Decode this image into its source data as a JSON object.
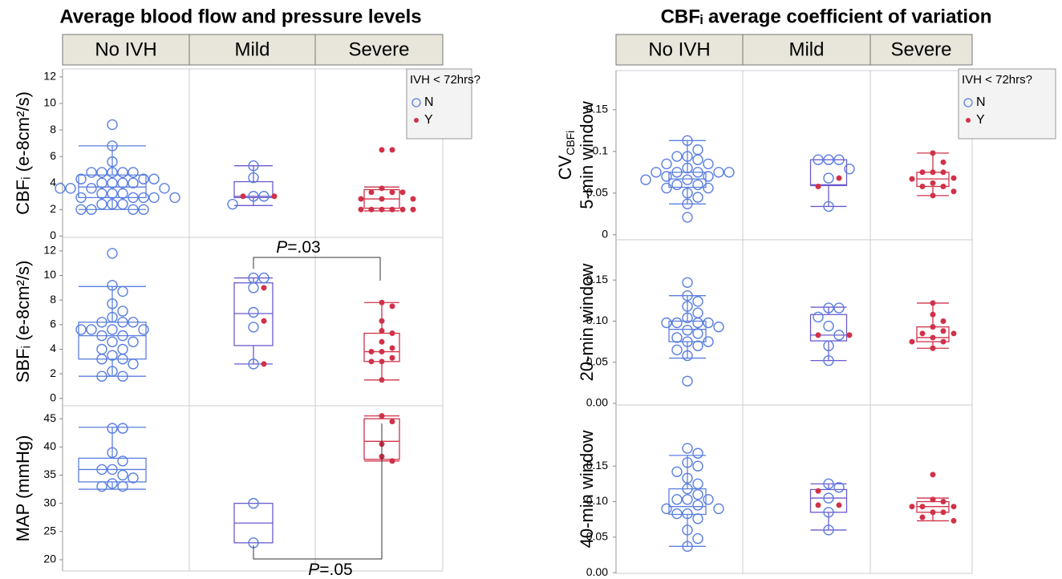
{
  "chart_data": [
    {
      "type": "box",
      "title": "Average blood flow and pressure levels",
      "categories": [
        "No IVH",
        "Mild",
        "Severe"
      ],
      "box_colors": [
        "#5a7fe0",
        "#6a5acd",
        "#d0324a"
      ],
      "legend": {
        "title": "IVH < 72hrs?",
        "position": "top-right",
        "series": [
          {
            "name": "N",
            "color": "#5a7fe0",
            "marker": "open-circle"
          },
          {
            "name": "Y",
            "color": "#d0324a",
            "marker": "dot"
          }
        ]
      },
      "panels": [
        {
          "ylabel": "CBFᵢ (e-8cm²/s)",
          "ylim": [
            -0.1,
            12.6
          ],
          "yticks": [
            0,
            2,
            4,
            6,
            8,
            10,
            12
          ],
          "groups": [
            {
              "min": 2.0,
              "q1": 2.9,
              "median": 3.7,
              "q3": 4.6,
              "max": 6.8,
              "N": [
                8.4,
                6.8,
                5.6,
                4.8,
                4.8,
                4.8,
                4.8,
                4.8,
                4.3,
                4.3,
                4.3,
                4.0,
                4.0,
                4.0,
                4.0,
                3.6,
                3.6,
                3.6,
                3.6,
                3.2,
                3.2,
                3.2,
                2.9,
                2.9,
                2.9,
                2.9,
                2.9,
                2.4,
                2.4,
                2.4,
                2.0,
                2.0,
                2.0,
                2.0
              ],
              "Y": []
            },
            {
              "min": 2.3,
              "q1": 2.9,
              "median": 3.0,
              "q3": 4.1,
              "max": 5.3,
              "N": [
                5.3,
                4.4,
                3.0,
                3.0,
                2.4
              ],
              "Y": [
                3.0,
                3.0
              ]
            },
            {
              "min": 1.9,
              "q1": 2.1,
              "median": 2.8,
              "q3": 3.5,
              "max": 3.7,
              "N": [],
              "Y": [
                6.5,
                6.5,
                3.6,
                3.3,
                3.3,
                3.3,
                2.8,
                2.8,
                2.8,
                2.0,
                2.0,
                2.0,
                2.0,
                2.0,
                2.0
              ]
            }
          ]
        },
        {
          "ylabel": "SBFᵢ (e-8cm²/s)",
          "ylim": [
            -0.6,
            13.1
          ],
          "yticks": [
            0,
            2,
            4,
            6,
            8,
            10,
            12
          ],
          "annotation": {
            "italic": "P",
            "text": "=.03"
          },
          "groups": [
            {
              "min": 1.8,
              "q1": 3.2,
              "median": 5.1,
              "q3": 6.2,
              "max": 9.1,
              "N": [
                11.8,
                9.2,
                8.7,
                7.7,
                7.1,
                6.6,
                6.2,
                6.2,
                6.2,
                5.6,
                5.6,
                5.6,
                5.6,
                5.1,
                5.1,
                4.6,
                4.6,
                4.0,
                4.0,
                3.5,
                3.2,
                3.2,
                2.8,
                2.2,
                1.8,
                1.8
              ],
              "Y": []
            },
            {
              "min": 2.8,
              "q1": 4.3,
              "median": 6.9,
              "q3": 9.4,
              "max": 9.8,
              "N": [
                9.8,
                9.8,
                9.0,
                7.0,
                5.8,
                2.8
              ],
              "Y": [
                9.0,
                6.3,
                2.8
              ]
            },
            {
              "min": 1.5,
              "q1": 3.0,
              "median": 3.8,
              "q3": 5.3,
              "max": 7.8,
              "N": [],
              "Y": [
                7.8,
                7.5,
                6.3,
                5.5,
                5.3,
                4.6,
                4.1,
                3.8,
                3.8,
                3.3,
                3.0,
                3.0,
                1.5
              ]
            }
          ]
        },
        {
          "ylabel": "MAP (mmHg)",
          "ylim": [
            18,
            47.3
          ],
          "yticks": [
            20,
            25,
            30,
            35,
            40,
            45
          ],
          "annotation": {
            "italic": "P",
            "text": "=.05"
          },
          "groups": [
            {
              "min": 32.5,
              "q1": 33.8,
              "median": 36,
              "q3": 38,
              "max": 43.5,
              "N": [
                43.3,
                43.3,
                39,
                37.5,
                36,
                36,
                35,
                34.5,
                33.5,
                33,
                33
              ],
              "Y": []
            },
            {
              "min": 23,
              "q1": 23,
              "median": 26.5,
              "q3": 30,
              "max": 30,
              "N": [
                30,
                23
              ],
              "Y": []
            },
            {
              "min": 37.5,
              "q1": 37.8,
              "median": 41,
              "q3": 45,
              "max": 45.5,
              "N": [],
              "Y": [
                45.5,
                44.5,
                40.5,
                38.3,
                37.5
              ]
            }
          ]
        }
      ]
    },
    {
      "type": "box",
      "title": "CBFᵢ average coefficient of variation",
      "categories": [
        "No IVH",
        "Mild",
        "Severe"
      ],
      "box_colors": [
        "#5a7fe0",
        "#6a5acd",
        "#d0324a"
      ],
      "legend": {
        "title": "IVH < 72hrs?",
        "position": "top-right",
        "series": [
          {
            "name": "N",
            "color": "#5a7fe0",
            "marker": "open-circle"
          },
          {
            "name": "Y",
            "color": "#d0324a",
            "marker": "dot"
          }
        ]
      },
      "panels": [
        {
          "ylabel_top": "CV",
          "ylabel_sub": "CBFi",
          "ylabel": "5-min window",
          "ylim": [
            -0.006,
            0.197
          ],
          "yticks": [
            0,
            0.05,
            0.1,
            0.15
          ],
          "groups": [
            {
              "min": 0.037,
              "q1": 0.057,
              "median": 0.067,
              "q3": 0.075,
              "max": 0.113,
              "N": [
                0.113,
                0.102,
                0.094,
                0.094,
                0.09,
                0.085,
                0.085,
                0.08,
                0.075,
                0.075,
                0.075,
                0.075,
                0.075,
                0.07,
                0.07,
                0.066,
                0.066,
                0.06,
                0.06,
                0.056,
                0.056,
                0.05,
                0.045,
                0.037,
                0.021
              ],
              "Y": []
            },
            {
              "min": 0.034,
              "q1": 0.059,
              "median": 0.06,
              "q3": 0.09,
              "max": 0.09,
              "N": [
                0.09,
                0.09,
                0.09,
                0.079,
                0.068,
                0.034
              ],
              "Y": [
                0.068,
                0.058
              ]
            },
            {
              "min": 0.047,
              "q1": 0.058,
              "median": 0.067,
              "q3": 0.075,
              "max": 0.098,
              "N": [],
              "Y": [
                0.098,
                0.087,
                0.075,
                0.075,
                0.075,
                0.068,
                0.067,
                0.062,
                0.058,
                0.058,
                0.052,
                0.047
              ]
            }
          ]
        },
        {
          "ylabel": "20-min window",
          "ylim": [
            -0.002,
            0.199
          ],
          "yticks": [
            {
              "value": 0,
              "label": "0.00"
            },
            0.05,
            {
              "value": 0.1,
              "label": "0.10"
            },
            0.15
          ],
          "groups": [
            {
              "min": 0.055,
              "q1": 0.075,
              "median": 0.09,
              "q3": 0.1,
              "max": 0.131,
              "N": [
                0.147,
                0.131,
                0.124,
                0.118,
                0.11,
                0.104,
                0.098,
                0.098,
                0.098,
                0.098,
                0.093,
                0.089,
                0.085,
                0.08,
                0.075,
                0.075,
                0.07,
                0.065,
                0.058,
                0.027
              ],
              "Y": []
            },
            {
              "min": 0.052,
              "q1": 0.076,
              "median": 0.083,
              "q3": 0.108,
              "max": 0.117,
              "N": [
                0.116,
                0.116,
                0.105,
                0.094,
                0.083,
                0.07,
                0.052
              ],
              "Y": [
                0.083,
                0.083
              ]
            },
            {
              "min": 0.067,
              "q1": 0.075,
              "median": 0.08,
              "q3": 0.093,
              "max": 0.122,
              "N": [],
              "Y": [
                0.122,
                0.108,
                0.1,
                0.093,
                0.088,
                0.085,
                0.085,
                0.08,
                0.075,
                0.075,
                0.067
              ]
            }
          ]
        },
        {
          "ylabel": "40-min window",
          "ylim": [
            -0.001,
            0.236
          ],
          "yticks": [
            {
              "value": 0,
              "label": "0.00"
            },
            0.05,
            {
              "value": 0.1,
              "label": "0.10"
            },
            0.15
          ],
          "groups": [
            {
              "min": 0.037,
              "q1": 0.082,
              "median": 0.093,
              "q3": 0.118,
              "max": 0.165,
              "N": [
                0.175,
                0.168,
                0.155,
                0.15,
                0.142,
                0.133,
                0.125,
                0.118,
                0.11,
                0.103,
                0.103,
                0.103,
                0.095,
                0.09,
                0.09,
                0.083,
                0.083,
                0.076,
                0.06,
                0.048,
                0.037
              ],
              "Y": []
            },
            {
              "min": 0.06,
              "q1": 0.085,
              "median": 0.105,
              "q3": 0.117,
              "max": 0.125,
              "N": [
                0.125,
                0.12,
                0.105,
                0.085,
                0.06
              ],
              "Y": [
                0.115,
                0.095,
                0.095
              ]
            },
            {
              "min": 0.073,
              "q1": 0.085,
              "median": 0.093,
              "q3": 0.1,
              "max": 0.105,
              "N": [],
              "Y": [
                0.138,
                0.103,
                0.1,
                0.093,
                0.093,
                0.093,
                0.085,
                0.085,
                0.078,
                0.073
              ]
            }
          ]
        }
      ]
    }
  ]
}
